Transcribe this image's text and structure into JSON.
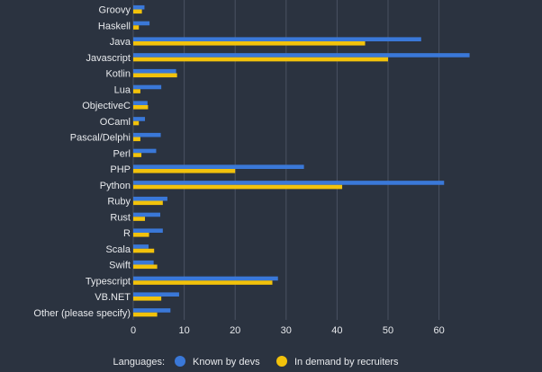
{
  "colors": {
    "background": "#2b3340",
    "grid": "#4a5261",
    "text": "#e8eaed",
    "series_known": "#3a78d8",
    "series_demand": "#f2c20b"
  },
  "chart_data": {
    "type": "bar",
    "orientation": "horizontal",
    "categories": [
      "Groovy",
      "Haskell",
      "Java",
      "Javascript",
      "Kotlin",
      "Lua",
      "ObjectiveC",
      "OCaml",
      "Pascal/Delphi",
      "Perl",
      "PHP",
      "Python",
      "Ruby",
      "Rust",
      "R",
      "Scala",
      "Swift",
      "Typescript",
      "VB.NET",
      "Other (please specify)"
    ],
    "series": [
      {
        "name": "Known by devs",
        "values": [
          2.2,
          3.2,
          56.5,
          66.0,
          8.4,
          5.5,
          2.8,
          2.3,
          5.4,
          4.5,
          33.5,
          61.0,
          6.7,
          5.3,
          5.8,
          3.0,
          4.0,
          28.4,
          9.0,
          7.3
        ]
      },
      {
        "name": "In demand by recruiters",
        "values": [
          1.7,
          1.1,
          45.5,
          50.0,
          8.6,
          1.4,
          2.9,
          1.1,
          1.4,
          1.6,
          20.0,
          41.0,
          5.8,
          2.3,
          3.1,
          4.1,
          4.7,
          27.3,
          5.5,
          4.7
        ]
      }
    ],
    "xticks": [
      "0",
      "10",
      "20",
      "30",
      "40",
      "50",
      "60"
    ],
    "xlim": [
      0,
      67
    ],
    "grid": "vertical",
    "legend": {
      "title": "Languages:",
      "position": "bottom-center"
    }
  }
}
